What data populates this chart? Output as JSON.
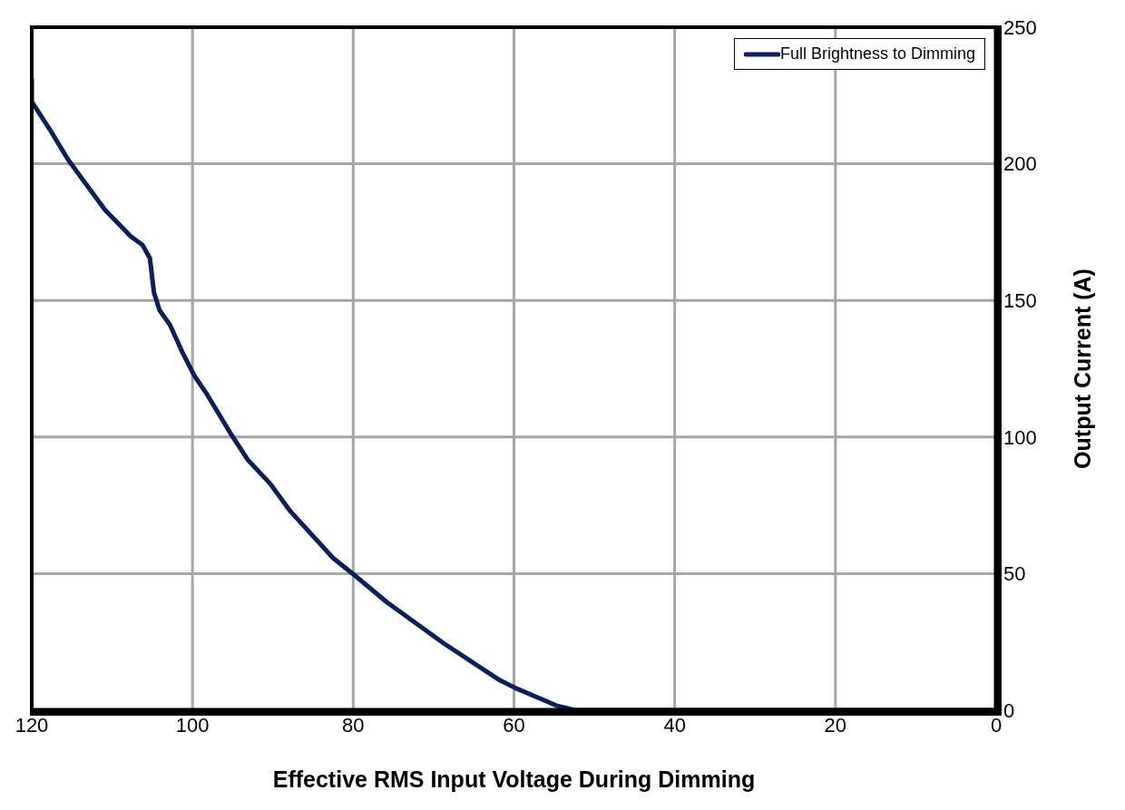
{
  "chart_data": {
    "type": "line",
    "xlabel": "Effective RMS Input Voltage During Dimming",
    "ylabel": "Output Current (A)",
    "xlim": [
      120,
      0
    ],
    "xticks": [
      120,
      100,
      80,
      60,
      40,
      20,
      0
    ],
    "ylim": [
      0,
      250
    ],
    "yticks": [
      0,
      50,
      100,
      150,
      200,
      250
    ],
    "grid": true,
    "legend": "top right",
    "line_style": "solid",
    "marker": "none",
    "series": [
      {
        "name": "Full Brightness to Dimming",
        "color": "#0a1f5c",
        "x": [
          120,
          120,
          117.8,
          115.5,
          113.6,
          110.9,
          107.7,
          106.2,
          105.3,
          104.8,
          104.1,
          102.8,
          101.3,
          99.8,
          98.3,
          95.3,
          93.1,
          90.3,
          87.9,
          82.5,
          80,
          75.8,
          68.7,
          62,
          59.8,
          54.6,
          52.4,
          40,
          20,
          0
        ],
        "values": [
          231,
          222.7,
          212.8,
          201.6,
          194,
          183.2,
          173.5,
          170.2,
          165.4,
          153,
          146.4,
          141,
          131.3,
          122.6,
          116.1,
          101.5,
          91.6,
          82.8,
          73.1,
          55.7,
          49.8,
          39.5,
          24.4,
          11.4,
          8.1,
          1.6,
          0,
          0,
          0,
          0
        ]
      }
    ]
  }
}
